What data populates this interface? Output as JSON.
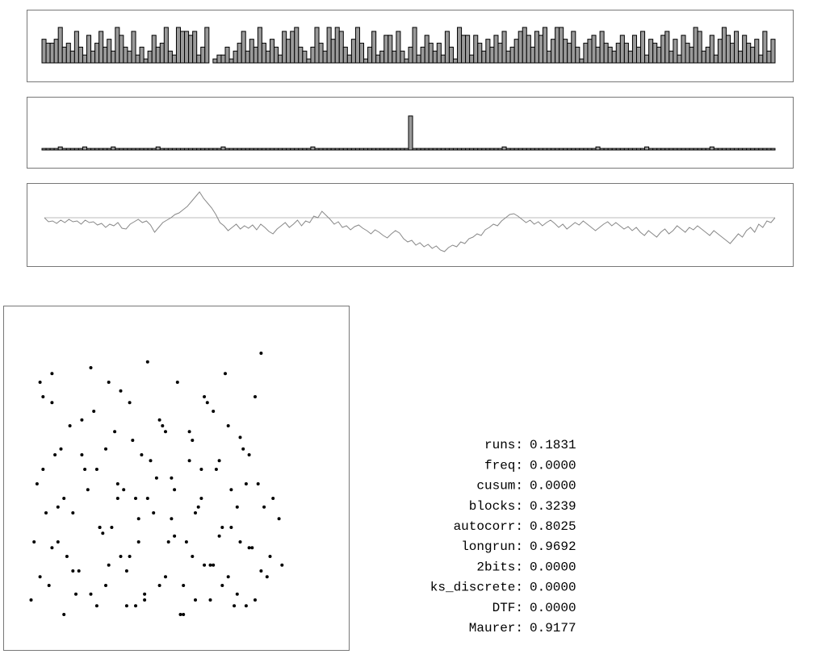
{
  "chart_data": [
    {
      "type": "bar",
      "color": "#9a9a9a",
      "ylim": [
        0,
        9
      ],
      "values": [
        6,
        5,
        5,
        6,
        9,
        4,
        5,
        3,
        8,
        4,
        2,
        7,
        3,
        5,
        8,
        4,
        6,
        3,
        9,
        7,
        4,
        3,
        8,
        2,
        4,
        1,
        3,
        7,
        4,
        5,
        9,
        3,
        2,
        9,
        8,
        8,
        7,
        8,
        2,
        4,
        9,
        0,
        1,
        2,
        2,
        4,
        1,
        3,
        5,
        8,
        3,
        6,
        4,
        9,
        5,
        3,
        6,
        4,
        2,
        8,
        6,
        8,
        9,
        4,
        3,
        1,
        4,
        9,
        5,
        3,
        9,
        6,
        9,
        8,
        4,
        2,
        6,
        9,
        5,
        1,
        4,
        8,
        2,
        3,
        7,
        7,
        3,
        8,
        3,
        1,
        4,
        9,
        2,
        4,
        7,
        5,
        3,
        5,
        2,
        8,
        4,
        1,
        9,
        7,
        7,
        2,
        7,
        5,
        3,
        6,
        4,
        7,
        5,
        8,
        3,
        4,
        6,
        8,
        9,
        7,
        4,
        8,
        7,
        9,
        3,
        6,
        9,
        9,
        6,
        5,
        8,
        4,
        1,
        5,
        6,
        7,
        4,
        8,
        5,
        4,
        3,
        5,
        7,
        5,
        3,
        7,
        4,
        8,
        2,
        6,
        5,
        4,
        7,
        8,
        3,
        6,
        2,
        7,
        5,
        4,
        9,
        8,
        3,
        4,
        7,
        2,
        6,
        9,
        7,
        5,
        8,
        3,
        7,
        5,
        4,
        6,
        2,
        8,
        3,
        6
      ]
    },
    {
      "type": "bar",
      "color": "#9a9a9a",
      "ylim": [
        0,
        24
      ],
      "values": [
        1,
        1,
        1,
        1,
        2,
        1,
        1,
        1,
        1,
        1,
        2,
        1,
        1,
        1,
        1,
        1,
        1,
        2,
        1,
        1,
        1,
        1,
        1,
        1,
        1,
        1,
        1,
        1,
        2,
        1,
        1,
        1,
        1,
        1,
        1,
        1,
        1,
        1,
        1,
        1,
        1,
        1,
        1,
        1,
        2,
        1,
        1,
        1,
        1,
        1,
        1,
        1,
        1,
        1,
        1,
        1,
        1,
        1,
        1,
        1,
        1,
        1,
        1,
        1,
        1,
        1,
        2,
        1,
        1,
        1,
        1,
        1,
        1,
        1,
        1,
        1,
        1,
        1,
        1,
        1,
        1,
        1,
        1,
        1,
        1,
        1,
        1,
        1,
        1,
        1,
        22,
        1,
        1,
        1,
        1,
        1,
        1,
        1,
        1,
        1,
        1,
        1,
        1,
        1,
        1,
        1,
        1,
        1,
        1,
        1,
        1,
        1,
        1,
        2,
        1,
        1,
        1,
        1,
        1,
        1,
        1,
        1,
        1,
        1,
        1,
        1,
        1,
        1,
        1,
        1,
        1,
        1,
        1,
        1,
        1,
        1,
        2,
        1,
        1,
        1,
        1,
        1,
        1,
        1,
        1,
        1,
        1,
        1,
        2,
        1,
        1,
        1,
        1,
        1,
        1,
        1,
        1,
        1,
        1,
        1,
        1,
        1,
        1,
        1,
        2,
        1,
        1,
        1,
        1,
        1,
        1,
        1,
        1,
        1,
        1,
        1,
        1,
        1,
        1,
        1
      ]
    },
    {
      "type": "line",
      "color": "#888888",
      "ylim": [
        -45,
        35
      ],
      "yticks": [
        0
      ],
      "grid": true,
      "values": [
        0,
        -5,
        -4,
        -7,
        -3,
        -6,
        -2,
        -5,
        -4,
        -8,
        -3,
        -6,
        -5,
        -9,
        -7,
        -12,
        -8,
        -10,
        -6,
        -13,
        -14,
        -8,
        -5,
        -2,
        -6,
        -4,
        -9,
        -18,
        -12,
        -6,
        -3,
        0,
        4,
        6,
        10,
        14,
        20,
        26,
        32,
        24,
        18,
        12,
        4,
        -6,
        -10,
        -16,
        -12,
        -8,
        -14,
        -10,
        -13,
        -9,
        -15,
        -8,
        -12,
        -17,
        -20,
        -14,
        -10,
        -6,
        -12,
        -8,
        -3,
        -10,
        -4,
        -6,
        2,
        0,
        8,
        3,
        -2,
        -8,
        -5,
        -12,
        -10,
        -15,
        -11,
        -9,
        -13,
        -16,
        -20,
        -15,
        -18,
        -22,
        -25,
        -20,
        -16,
        -19,
        -26,
        -30,
        -28,
        -34,
        -31,
        -36,
        -33,
        -38,
        -35,
        -40,
        -42,
        -37,
        -34,
        -36,
        -30,
        -32,
        -26,
        -24,
        -20,
        -22,
        -15,
        -12,
        -8,
        -10,
        -4,
        0,
        4,
        5,
        2,
        -2,
        -6,
        -3,
        -8,
        -5,
        -10,
        -6,
        -3,
        -7,
        -12,
        -8,
        -14,
        -10,
        -6,
        -9,
        -4,
        -8,
        -12,
        -16,
        -12,
        -8,
        -5,
        -10,
        -6,
        -10,
        -14,
        -11,
        -16,
        -12,
        -18,
        -22,
        -16,
        -20,
        -24,
        -18,
        -14,
        -20,
        -16,
        -10,
        -14,
        -18,
        -12,
        -15,
        -10,
        -14,
        -18,
        -22,
        -16,
        -20,
        -24,
        -28,
        -32,
        -26,
        -20,
        -24,
        -16,
        -12,
        -18,
        -8,
        -12,
        -4,
        -6,
        0
      ]
    },
    {
      "type": "scatter",
      "color": "#000000",
      "xlim": [
        0,
        100
      ],
      "ylim": [
        0,
        100
      ],
      "x": [
        8,
        9,
        12,
        12,
        15,
        16,
        14,
        19,
        22,
        25,
        27,
        28,
        30,
        33,
        35,
        36,
        38,
        40,
        42,
        44,
        46,
        49,
        50,
        52,
        54,
        57,
        59,
        60,
        62,
        64,
        66,
        68,
        70,
        72,
        74,
        75,
        77,
        79,
        80,
        82,
        7,
        10,
        13,
        17,
        20,
        23,
        26,
        29,
        31,
        34,
        37,
        39,
        41,
        43,
        45,
        48,
        51,
        53,
        56,
        58,
        61,
        63,
        65,
        67,
        69,
        71,
        73,
        76,
        78,
        81,
        84,
        86,
        88,
        6,
        9,
        11,
        14,
        18,
        21,
        24,
        27,
        30,
        32,
        35,
        38,
        40,
        43,
        47,
        50,
        53,
        55,
        58,
        60,
        63,
        66,
        69,
        72,
        75,
        78,
        80,
        83,
        85,
        5,
        8,
        12,
        16,
        19,
        22,
        25,
        28,
        31,
        34,
        37,
        41,
        44,
        48,
        52,
        56,
        59,
        62,
        65,
        68,
        71,
        74,
        77,
        82,
        89
      ],
      "values": [
        85,
        80,
        88,
        78,
        62,
        45,
        30,
        20,
        72,
        90,
        55,
        35,
        15,
        68,
        82,
        48,
        25,
        8,
        60,
        92,
        40,
        70,
        18,
        52,
        85,
        30,
        65,
        10,
        45,
        78,
        22,
        58,
        88,
        35,
        12,
        66,
        50,
        28,
        80,
        95,
        50,
        40,
        60,
        25,
        12,
        55,
        75,
        33,
        85,
        45,
        20,
        65,
        38,
        10,
        58,
        72,
        30,
        48,
        15,
        68,
        42,
        80,
        22,
        55,
        35,
        70,
        8,
        62,
        28,
        50,
        18,
        45,
        38,
        30,
        55,
        15,
        42,
        70,
        20,
        48,
        8,
        62,
        35,
        25,
        78,
        45,
        12,
        52,
        68,
        32,
        5,
        58,
        40,
        22,
        75,
        15,
        48,
        30,
        60,
        10,
        42,
        25,
        10,
        18,
        28,
        5,
        40,
        60,
        12,
        35,
        22,
        50,
        8,
        30,
        45,
        15,
        38,
        5,
        25,
        55,
        10,
        32,
        18,
        42,
        8,
        20,
        22
      ]
    }
  ],
  "stats": {
    "rows": [
      [
        "runs:",
        "0.1831"
      ],
      [
        "freq:",
        "0.0000"
      ],
      [
        "cusum:",
        "0.0000"
      ],
      [
        "blocks:",
        "0.3239"
      ],
      [
        "autocorr:",
        "0.8025"
      ],
      [
        "longrun:",
        "0.9692"
      ],
      [
        "2bits:",
        "0.0000"
      ],
      [
        "ks_discrete:",
        "0.0000"
      ],
      [
        "DTF:",
        "0.0000"
      ],
      [
        "Maurer:",
        "0.9177"
      ]
    ]
  }
}
